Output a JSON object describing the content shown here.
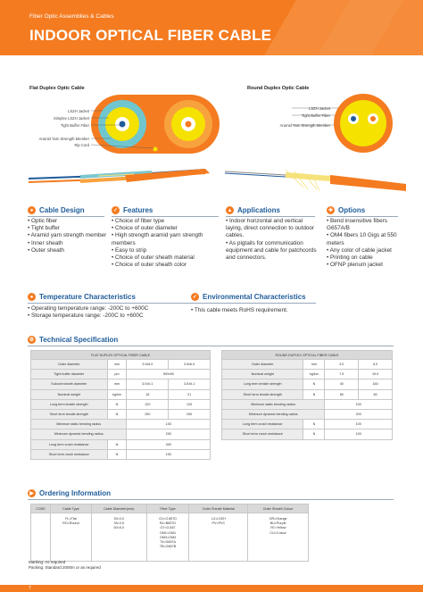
{
  "header": {
    "subtitle": "Fiber Optic Assemblies & Cables",
    "title": "INDOOR OPTICAL FIBER CABLE"
  },
  "flat": {
    "caption": "Flat Duplex Optic Cable",
    "labels": [
      "LSZH Jacket",
      "Simplex LSZH Jacket",
      "Tight Buffer Fiber",
      "Aramid Yarn Strength Member",
      "Rip Cord"
    ]
  },
  "round": {
    "caption": "Round Duplex Optic Cable",
    "labels": [
      "LSZH Jacket",
      "Tight Buffer Fiber",
      "Aramid Yarn Strength Member"
    ]
  },
  "sections": {
    "cable_design": {
      "title": "Cable Design",
      "items": [
        "Optic fiber",
        "Tight buffer",
        "Aramid yarn strength member",
        "Inner sheath",
        "Outer sheath"
      ]
    },
    "features": {
      "title": "Features",
      "items": [
        "Choice of fiber type",
        "Choice of outer diameter",
        "High strength aramid yarn strength members",
        "Easy to strip",
        "Choice of outer sheath material",
        "Choice of outer sheath color"
      ]
    },
    "applications": {
      "title": "Applications",
      "items": [
        "Indoor horizontal and vertical laying, direct connection to outdoor cables.",
        "As pigtails for communication equipment and cable for patchcords and connectors."
      ]
    },
    "options": {
      "title": "Options",
      "items": [
        "Bend insensitive fibers G657A/B",
        "OM4 fibers 10 Gigs at 550 meters",
        "Any color of cable jacket",
        "Printing on cable",
        "OFNP plenum jacket"
      ]
    },
    "temperature": {
      "title": "Temperature Characteristics",
      "items": [
        "Operating temperature range: -200C to +600C",
        "Storage temperature range: -200C to +600C"
      ]
    },
    "environmental": {
      "title": "Environmental Characteristics",
      "items": [
        "This cable meets RoHS requirement."
      ]
    }
  },
  "spec": {
    "title": "Technical Specification",
    "flat_table": {
      "caption": "FLAT DUPLEX OPTICAL FIBER CABLE",
      "rows": [
        [
          "Outer diameter",
          "mm",
          "3.0x6.0",
          "3.5x6.0"
        ],
        [
          "Tight buffer diameter",
          "µm",
          "900±50",
          ""
        ],
        [
          "Subunit sheath diameter",
          "mm",
          "3.0±0.1",
          "3.5±0.1"
        ],
        [
          "Nominal weight",
          "kg/km",
          "18",
          "21"
        ],
        [
          "Long term tensile strength",
          "N",
          "120",
          "120"
        ],
        [
          "Short term tensile strength",
          "N",
          "250",
          "250"
        ],
        [
          "Minimum static bending radius",
          "",
          "100",
          ""
        ],
        [
          "Minimum dynamic bending radius",
          "",
          "200",
          ""
        ],
        [
          "Long term crush resistance",
          "N",
          "300",
          ""
        ],
        [
          "Short term crush resistance",
          "N",
          "100",
          ""
        ]
      ]
    },
    "round_table": {
      "caption": "ROUND DUPLEX OPTICAL FIBER CABLE",
      "rows": [
        [
          "Outer diameter",
          "mm",
          "3.0",
          "5.0"
        ],
        [
          "Nominal weight",
          "kg/km",
          "7.5",
          "19.0"
        ],
        [
          "Long term tensile strength",
          "N",
          "40",
          "160"
        ],
        [
          "Short term tensile strength",
          "N",
          "80",
          "80"
        ],
        [
          "Minimum static bending radius",
          "",
          "100",
          ""
        ],
        [
          "Minimum dynamic bending radius",
          "",
          "200",
          ""
        ],
        [
          "Long term crush resistance",
          "N",
          "100",
          ""
        ],
        [
          "Short term crush resistance",
          "N",
          "100",
          ""
        ]
      ]
    }
  },
  "ordering": {
    "title": "Ordering Information",
    "headers": [
      "CODE",
      "Cable Type",
      "Cable Diameter(mm)",
      "Fiber Type",
      "Outer Sheath Material",
      "Outer Sheath Colour"
    ],
    "row": [
      "",
      "FL=Flat\nRO=Round",
      "30=3.0\n35=3.5\n50=5.0",
      "G1=G.657D\nB1=B657D\nG7=G.657\nOM1=OM1\nOM3=OM3\nT4=G657A\nTB=G657B",
      "L2=LSZH\nPV=PVC",
      "OR=Orange\nBU=Purple\nYE=Yellow\nCU=Colour"
    ],
    "notes": [
      "Marking: As required",
      "Packing: Standard 2000m or as required"
    ]
  },
  "page_number": "7"
}
